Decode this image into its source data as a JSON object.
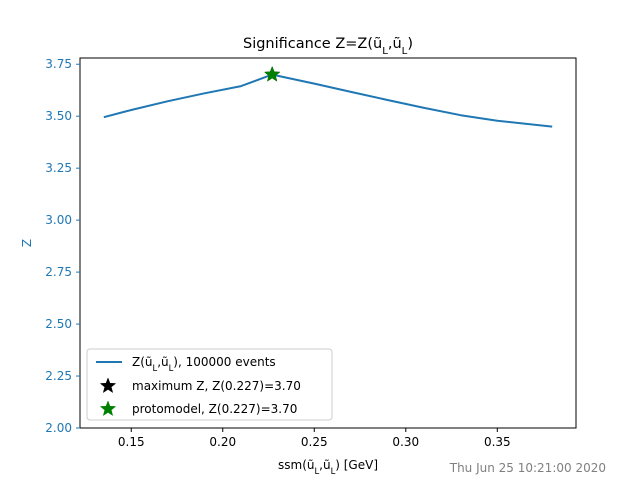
{
  "chart_data": {
    "type": "line",
    "title": "Significance Z=Z(ũ_L,ũ_L)",
    "xlabel": "ssm(ũ_L,ũ_L) [GeV]",
    "ylabel": "Z",
    "xlim": [
      0.122,
      0.393
    ],
    "ylim": [
      2.0,
      3.78
    ],
    "x_ticks": [
      0.15,
      0.2,
      0.25,
      0.3,
      0.35
    ],
    "x_tick_labels": [
      "0.15",
      "0.20",
      "0.25",
      "0.30",
      "0.35"
    ],
    "y_ticks": [
      2.0,
      2.25,
      2.5,
      2.75,
      3.0,
      3.25,
      3.5,
      3.75
    ],
    "y_tick_labels": [
      "2.00",
      "2.25",
      "2.50",
      "2.75",
      "3.00",
      "3.25",
      "3.50",
      "3.75"
    ],
    "grid": false,
    "legend_position": "lower-left",
    "series": [
      {
        "name": "Z(ũ_L,ũ_L), 100000 events",
        "color": "#1f77b4",
        "x": [
          0.135,
          0.15,
          0.17,
          0.19,
          0.21,
          0.227,
          0.25,
          0.27,
          0.29,
          0.31,
          0.33,
          0.35,
          0.38
        ],
        "y": [
          3.495,
          3.53,
          3.572,
          3.61,
          3.645,
          3.7,
          3.657,
          3.617,
          3.578,
          3.54,
          3.505,
          3.478,
          3.45
        ]
      }
    ],
    "markers": [
      {
        "name": "maximum Z, Z(0.227)=3.70",
        "x": 0.227,
        "y": 3.7,
        "color": "#000000",
        "symbol": "star"
      },
      {
        "name": "protomodel, Z(0.227)=3.70",
        "x": 0.227,
        "y": 3.7,
        "color": "#008000",
        "symbol": "star"
      }
    ],
    "axis_color_y": "#1f77b4",
    "timestamp": "Thu Jun 25 10:21:00 2020"
  }
}
